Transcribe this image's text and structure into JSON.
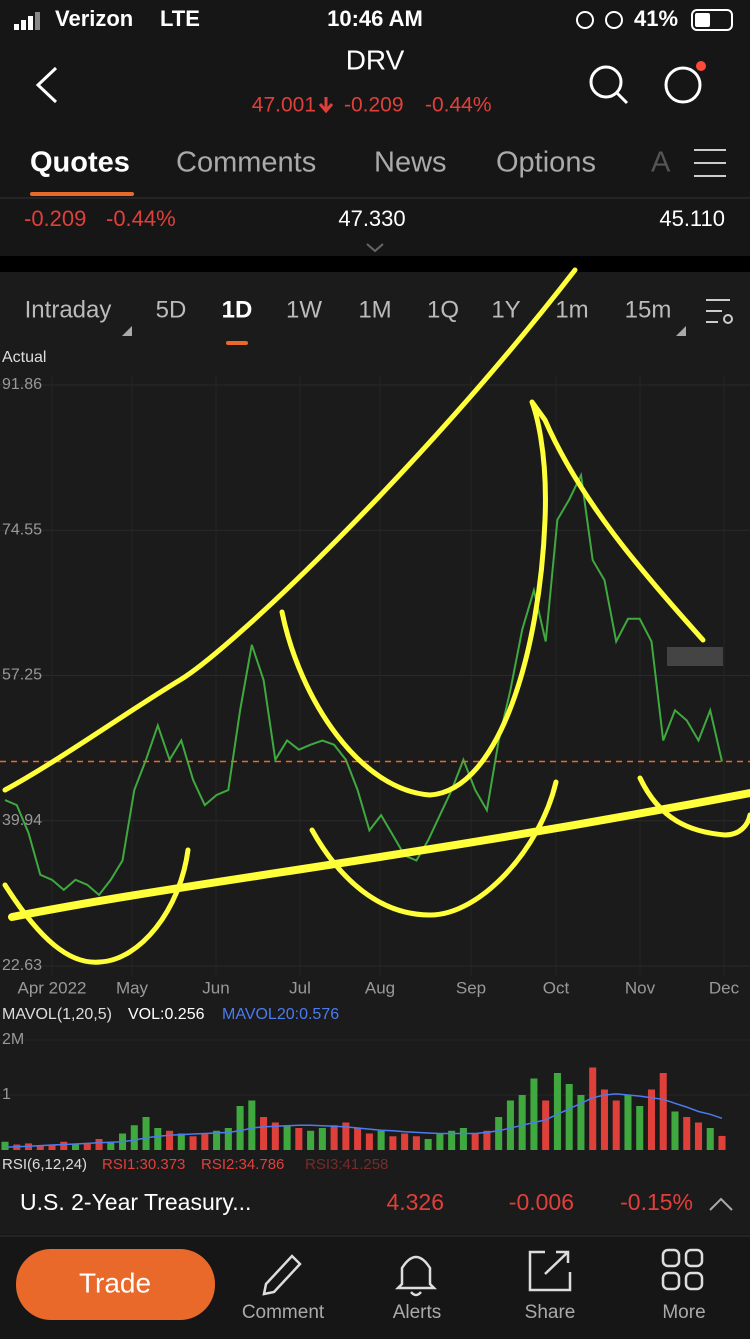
{
  "status_bar": {
    "carrier": "Verizon",
    "network": "LTE",
    "time": "10:46 AM",
    "battery": "41%"
  },
  "header": {
    "symbol": "DRV",
    "price": "47.001",
    "change": "-0.209",
    "change_pct": "-0.44%"
  },
  "tabs": [
    "Quotes",
    "Comments",
    "News",
    "Options",
    "A"
  ],
  "quote_row": {
    "change": "-0.209",
    "change_pct": "-0.44%",
    "middle": "47.330",
    "right": "45.110"
  },
  "periods": [
    "Intraday",
    "5D",
    "1D",
    "1W",
    "1M",
    "1Q",
    "1Y",
    "1m",
    "15m"
  ],
  "chart_data": [
    {
      "type": "line",
      "y_label": "Actual",
      "color": "#3fa93f",
      "ylim": [
        22.63,
        91.86
      ],
      "yticks": [
        22.63,
        39.94,
        57.25,
        74.55,
        91.86
      ],
      "x_labels": [
        "Apr 2022",
        "May",
        "Jun",
        "Jul",
        "Aug",
        "Sep",
        "Oct",
        "Nov",
        "Dec"
      ],
      "values": [
        42.4,
        41.8,
        38.5,
        33.5,
        32.9,
        31.7,
        32.9,
        32.3,
        31.1,
        32.9,
        35.2,
        43.6,
        47.2,
        51.3,
        47.2,
        49.5,
        44.8,
        41.8,
        43.0,
        43.6,
        53.1,
        60.9,
        56.7,
        47.2,
        49.5,
        48.4,
        49.0,
        49.5,
        49.0,
        47.2,
        43.6,
        38.8,
        40.6,
        38.2,
        35.8,
        35.2,
        37.6,
        40.6,
        43.6,
        47.2,
        43.6,
        41.2,
        49.5,
        55.5,
        62.7,
        67.4,
        61.3,
        75.8,
        78.2,
        81.1,
        71.0,
        68.6,
        61.3,
        64.0,
        64.0,
        61.3,
        49.5,
        53.1,
        51.9,
        49.5,
        53.1,
        47.0
      ]
    },
    {
      "type": "bar",
      "title": "MAVOL(1,20,5)",
      "up_color": "#3fa93f",
      "down_color": "#e0403a",
      "ylim": [
        0,
        2
      ],
      "yticks": [
        {
          "value": 2,
          "label": "2M"
        },
        1
      ],
      "series": [
        {
          "name": "VOL:0.256",
          "color": "#ffffff",
          "values": [
            0.15,
            0.1,
            0.12,
            0.08,
            0.1,
            0.15,
            0.1,
            0.12,
            0.2,
            0.15,
            0.3,
            0.45,
            0.6,
            0.4,
            0.35,
            0.3,
            0.25,
            0.3,
            0.35,
            0.4,
            0.8,
            0.9,
            0.6,
            0.5,
            0.45,
            0.4,
            0.35,
            0.4,
            0.45,
            0.5,
            0.4,
            0.3,
            0.35,
            0.25,
            0.3,
            0.25,
            0.2,
            0.3,
            0.35,
            0.4,
            0.3,
            0.35,
            0.6,
            0.9,
            1.0,
            1.3,
            0.9,
            1.4,
            1.2,
            1.0,
            1.5,
            1.1,
            0.9,
            1.0,
            0.8,
            1.1,
            1.4,
            0.7,
            0.6,
            0.5,
            0.4,
            0.256
          ]
        },
        {
          "name": "MAVOL20:0.576",
          "color": "#4a7cf0",
          "values": [
            0.05,
            0.06,
            0.07,
            0.08,
            0.09,
            0.1,
            0.11,
            0.12,
            0.13,
            0.14,
            0.15,
            0.18,
            0.22,
            0.25,
            0.27,
            0.28,
            0.29,
            0.3,
            0.31,
            0.32,
            0.35,
            0.4,
            0.42,
            0.43,
            0.44,
            0.45,
            0.45,
            0.44,
            0.43,
            0.42,
            0.4,
            0.38,
            0.36,
            0.35,
            0.33,
            0.32,
            0.31,
            0.3,
            0.3,
            0.3,
            0.3,
            0.32,
            0.35,
            0.4,
            0.45,
            0.5,
            0.55,
            0.65,
            0.75,
            0.85,
            0.95,
            1.0,
            1.02,
            1.0,
            0.98,
            0.95,
            0.92,
            0.85,
            0.78,
            0.7,
            0.65,
            0.576
          ]
        }
      ]
    }
  ],
  "indicators": {
    "title": "RSI(6,12,24)",
    "values": [
      "RSI1:30.373",
      "RSI2:34.786",
      "RSI3:41.258"
    ]
  },
  "ticker": {
    "name": "U.S. 2-Year Treasury...",
    "price": "4.326",
    "change": "-0.006",
    "change_pct": "-0.15%"
  },
  "nav": {
    "button": "Trade",
    "items": [
      "Comment",
      "Alerts",
      "Share",
      "More"
    ]
  }
}
